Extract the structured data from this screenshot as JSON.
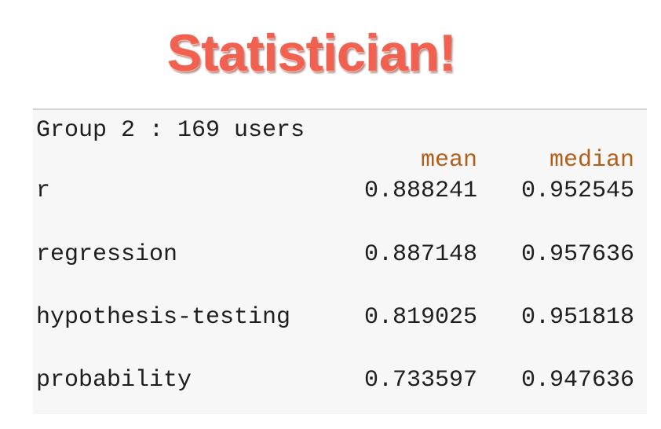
{
  "title": "Statistician!",
  "table": {
    "group_line": "Group 2 : 169 users",
    "columns": [
      "mean",
      "median"
    ],
    "rows": [
      {
        "label": "r",
        "mean": "0.888241",
        "median": "0.952545"
      },
      {
        "label": "regression",
        "mean": "0.887148",
        "median": "0.957636"
      },
      {
        "label": "hypothesis-testing",
        "mean": "0.819025",
        "median": "0.951818"
      },
      {
        "label": "probability",
        "mean": "0.733597",
        "median": "0.947636"
      }
    ]
  },
  "colors": {
    "title": "#f2604f",
    "header": "#b35d17",
    "text": "#1e1e1e",
    "panel_bg": "#f7f7f7"
  }
}
